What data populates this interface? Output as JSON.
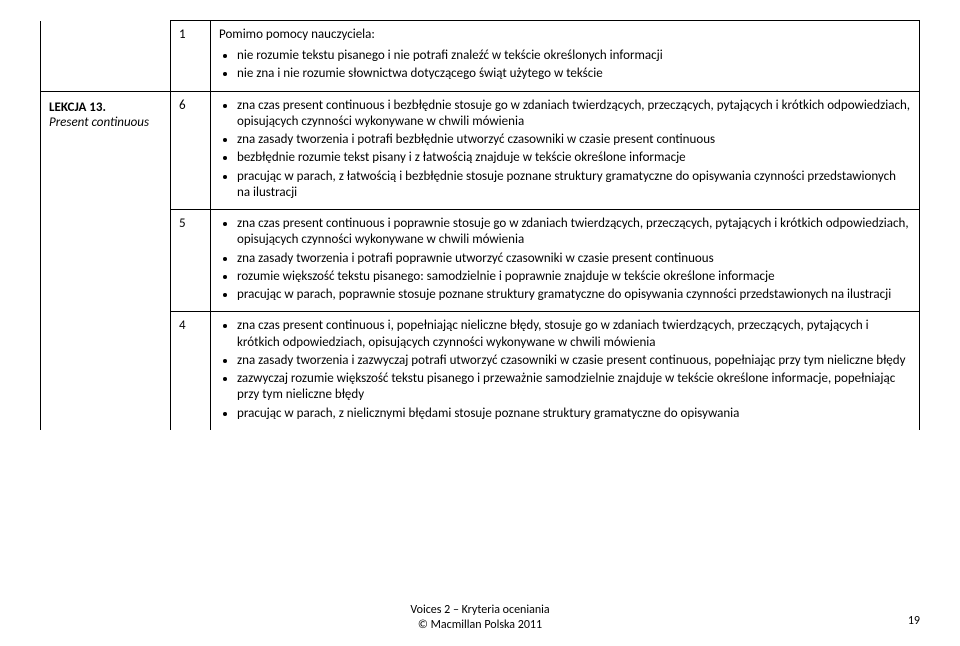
{
  "row1": {
    "num": "1",
    "intro": "Pomimo pomocy nauczyciela:",
    "bullets": [
      "nie rozumie tekstu pisanego i nie potrafi znaleźć w tekście określonych informacji",
      "nie zna i nie rozumie słownictwa dotyczącego świąt użytego w tekście"
    ]
  },
  "lesson": {
    "title": "LEKCJA 13.",
    "sub": "Present continuous"
  },
  "row6": {
    "num": "6",
    "bullets": [
      "zna czas present continuous i bezbłędnie stosuje go w zdaniach twierdzących, przeczących, pytających i krótkich odpowiedziach, opisujących czynności wykonywane w chwili mówienia",
      "zna zasady tworzenia i potrafi bezbłędnie utworzyć czasowniki w czasie present continuous",
      "bezbłędnie rozumie tekst pisany i z łatwością znajduje w tekście określone informacje",
      "pracując w parach, z łatwością i bezbłędnie stosuje poznane struktury gramatyczne do opisywania czynności przedstawionych na ilustracji"
    ]
  },
  "row5": {
    "num": "5",
    "bullets": [
      "zna czas present continuous i poprawnie stosuje go w zdaniach twierdzących, przeczących, pytających i krótkich odpowiedziach, opisujących czynności wykonywane w chwili mówienia",
      "zna zasady tworzenia i potrafi poprawnie utworzyć czasowniki w czasie present continuous",
      "rozumie większość tekstu pisanego: samodzielnie i poprawnie znajduje w tekście określone informacje",
      "pracując w parach, poprawnie stosuje poznane struktury gramatyczne do opisywania czynności przedstawionych na ilustracji"
    ]
  },
  "row4": {
    "num": "4",
    "bullets": [
      "zna czas present continuous i, popełniając nieliczne błędy, stosuje go w zdaniach twierdzących, przeczących, pytających i krótkich odpowiedziach, opisujących czynności wykonywane w chwili mówienia",
      "zna zasady tworzenia i zazwyczaj potrafi utworzyć czasowniki w czasie present continuous, popełniając przy tym nieliczne błędy",
      "zazwyczaj rozumie większość tekstu pisanego i przeważnie samodzielnie znajduje w tekście określone informacje, popełniając przy tym nieliczne błędy",
      "pracując w parach, z nielicznymi błędami stosuje poznane struktury gramatyczne do opisywania"
    ]
  },
  "footer": {
    "line1": "Voices 2 – Kryteria oceniania",
    "line2": "© Macmillan Polska 2011"
  },
  "pageNumber": "19"
}
